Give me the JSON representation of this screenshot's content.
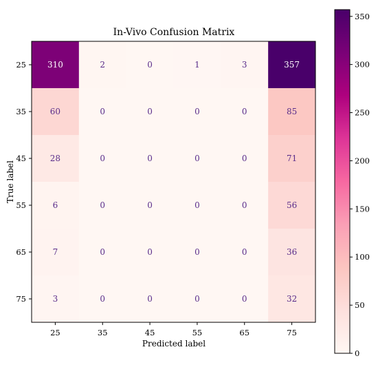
{
  "chart_data": {
    "type": "heatmap",
    "title": "In-Vivo Confusion Matrix",
    "xlabel": "Predicted label",
    "ylabel": "True label",
    "x_categories": [
      "25",
      "35",
      "45",
      "55",
      "65",
      "75"
    ],
    "y_categories": [
      "25",
      "35",
      "45",
      "55",
      "65",
      "75"
    ],
    "values": [
      [
        310,
        2,
        0,
        1,
        3,
        357
      ],
      [
        60,
        0,
        0,
        0,
        0,
        85
      ],
      [
        28,
        0,
        0,
        0,
        0,
        71
      ],
      [
        6,
        0,
        0,
        0,
        0,
        56
      ],
      [
        7,
        0,
        0,
        0,
        0,
        36
      ],
      [
        3,
        0,
        0,
        0,
        0,
        32
      ]
    ],
    "colormap": "RdPu",
    "colorbar": {
      "range": [
        0,
        357
      ],
      "ticks": [
        0,
        50,
        100,
        150,
        200,
        250,
        300,
        350
      ]
    },
    "text_color_light": "#ffffff",
    "text_color_dark": "#5a2d8a"
  }
}
